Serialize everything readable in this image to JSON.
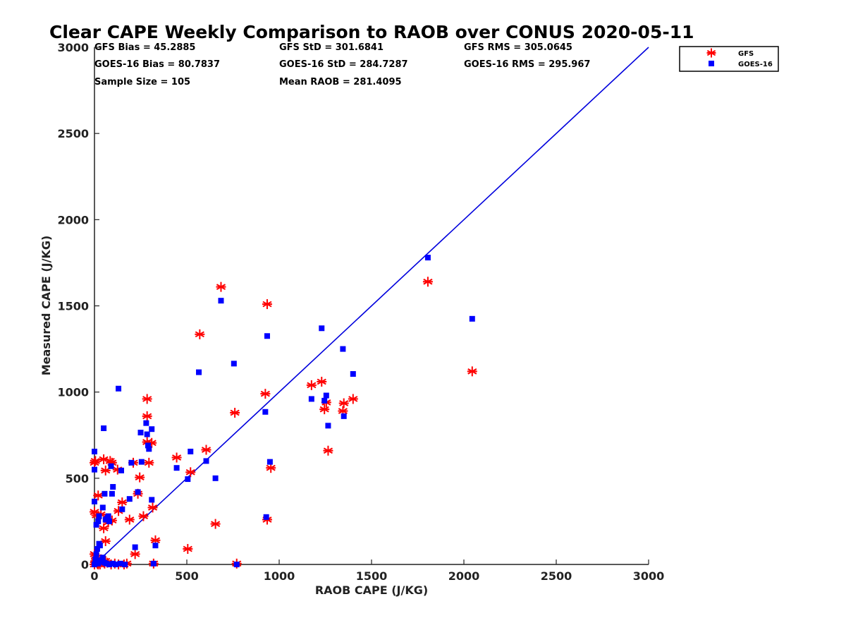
{
  "chart_data": {
    "type": "scatter",
    "title": "Clear CAPE Weekly Comparison to RAOB over CONUS 2020-05-11",
    "xlabel": "RAOB CAPE (J/KG)",
    "ylabel": "Measured CAPE (J/KG)",
    "xlim": [
      0,
      3000
    ],
    "ylim": [
      0,
      3000
    ],
    "xticks": [
      "0",
      "500",
      "1000",
      "1500",
      "2000",
      "2500",
      "3000"
    ],
    "yticks": [
      "0",
      "500",
      "1000",
      "1500",
      "2000",
      "2500",
      "3000"
    ],
    "grid": false,
    "legend_position": "top-right",
    "stats": [
      "GFS Bias = 45.2885",
      "GFS StD = 301.6841",
      "GFS RMS = 305.0645",
      "GOES-16 Bias = 80.7837",
      "GOES-16 StD = 284.7287",
      "GOES-16 RMS = 295.967",
      "Sample Size = 105",
      "Mean RAOB = 281.4095"
    ],
    "one_to_one_line": {
      "x": [
        0,
        3000
      ],
      "y": [
        0,
        3000
      ],
      "color": "#0000dd"
    },
    "series": [
      {
        "name": "GFS",
        "marker": "asterisk",
        "color": "#ff0000",
        "points": [
          [
            0,
            0
          ],
          [
            5,
            20
          ],
          [
            10,
            40
          ],
          [
            0,
            60
          ],
          [
            15,
            5
          ],
          [
            25,
            10
          ],
          [
            30,
            0
          ],
          [
            40,
            15
          ],
          [
            55,
            5
          ],
          [
            70,
            10
          ],
          [
            90,
            0
          ],
          [
            110,
            5
          ],
          [
            130,
            0
          ],
          [
            160,
            0
          ],
          [
            175,
            5
          ],
          [
            20,
            0
          ],
          [
            35,
            30
          ],
          [
            60,
            20
          ],
          [
            0,
            590
          ],
          [
            5,
            600
          ],
          [
            50,
            610
          ],
          [
            60,
            545
          ],
          [
            85,
            600
          ],
          [
            95,
            590
          ],
          [
            125,
            550
          ],
          [
            0,
            305
          ],
          [
            10,
            285
          ],
          [
            20,
            400
          ],
          [
            35,
            290
          ],
          [
            50,
            210
          ],
          [
            60,
            135
          ],
          [
            75,
            245
          ],
          [
            95,
            255
          ],
          [
            130,
            310
          ],
          [
            150,
            360
          ],
          [
            190,
            260
          ],
          [
            210,
            590
          ],
          [
            235,
            410
          ],
          [
            245,
            505
          ],
          [
            265,
            280
          ],
          [
            220,
            60
          ],
          [
            285,
            860
          ],
          [
            285,
            710
          ],
          [
            295,
            590
          ],
          [
            310,
            705
          ],
          [
            315,
            330
          ],
          [
            285,
            960
          ],
          [
            320,
            5
          ],
          [
            330,
            140
          ],
          [
            445,
            620
          ],
          [
            505,
            90
          ],
          [
            520,
            535
          ],
          [
            570,
            1335
          ],
          [
            605,
            665
          ],
          [
            655,
            235
          ],
          [
            685,
            1610
          ],
          [
            760,
            880
          ],
          [
            770,
            5
          ],
          [
            925,
            990
          ],
          [
            935,
            1510
          ],
          [
            935,
            260
          ],
          [
            955,
            560
          ],
          [
            1175,
            1040
          ],
          [
            1230,
            1060
          ],
          [
            1245,
            900
          ],
          [
            1255,
            940
          ],
          [
            1265,
            660
          ],
          [
            1345,
            890
          ],
          [
            1350,
            935
          ],
          [
            1400,
            960
          ],
          [
            1805,
            1640
          ],
          [
            2045,
            1120
          ]
        ]
      },
      {
        "name": "GOES-16",
        "marker": "square",
        "color": "#0000ff",
        "points": [
          [
            0,
            0
          ],
          [
            5,
            30
          ],
          [
            10,
            60
          ],
          [
            15,
            90
          ],
          [
            20,
            5
          ],
          [
            25,
            120
          ],
          [
            30,
            25
          ],
          [
            35,
            15
          ],
          [
            45,
            40
          ],
          [
            55,
            10
          ],
          [
            65,
            5
          ],
          [
            80,
            0
          ],
          [
            100,
            5
          ],
          [
            115,
            0
          ],
          [
            140,
            5
          ],
          [
            165,
            0
          ],
          [
            0,
            655
          ],
          [
            0,
            550
          ],
          [
            0,
            365
          ],
          [
            10,
            230
          ],
          [
            20,
            250
          ],
          [
            25,
            280
          ],
          [
            30,
            110
          ],
          [
            45,
            330
          ],
          [
            50,
            790
          ],
          [
            55,
            410
          ],
          [
            60,
            260
          ],
          [
            70,
            270
          ],
          [
            75,
            280
          ],
          [
            80,
            250
          ],
          [
            90,
            570
          ],
          [
            95,
            410
          ],
          [
            100,
            450
          ],
          [
            130,
            1020
          ],
          [
            145,
            545
          ],
          [
            150,
            320
          ],
          [
            190,
            380
          ],
          [
            200,
            590
          ],
          [
            220,
            100
          ],
          [
            235,
            420
          ],
          [
            250,
            765
          ],
          [
            255,
            595
          ],
          [
            280,
            820
          ],
          [
            285,
            755
          ],
          [
            290,
            690
          ],
          [
            295,
            670
          ],
          [
            310,
            785
          ],
          [
            310,
            375
          ],
          [
            320,
            5
          ],
          [
            330,
            110
          ],
          [
            445,
            560
          ],
          [
            505,
            495
          ],
          [
            520,
            655
          ],
          [
            565,
            1115
          ],
          [
            605,
            600
          ],
          [
            655,
            500
          ],
          [
            685,
            1530
          ],
          [
            755,
            1165
          ],
          [
            770,
            0
          ],
          [
            925,
            885
          ],
          [
            930,
            275
          ],
          [
            935,
            1325
          ],
          [
            950,
            595
          ],
          [
            1175,
            960
          ],
          [
            1230,
            1370
          ],
          [
            1245,
            950
          ],
          [
            1255,
            980
          ],
          [
            1265,
            805
          ],
          [
            1345,
            1250
          ],
          [
            1350,
            860
          ],
          [
            1400,
            1105
          ],
          [
            1805,
            1780
          ],
          [
            2045,
            1425
          ]
        ]
      }
    ]
  }
}
